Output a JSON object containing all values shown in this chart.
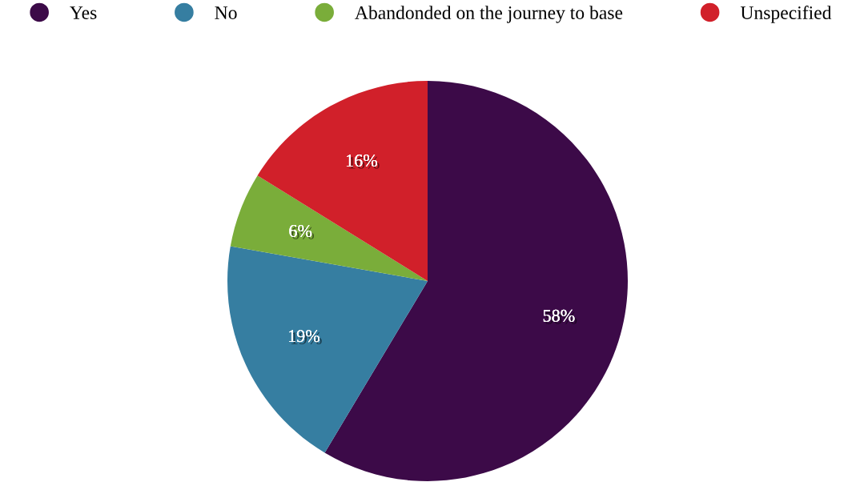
{
  "chart_data": {
    "type": "pie",
    "categories": [
      "Yes",
      "No",
      "Abandonded on the journey to base",
      "Unspecified"
    ],
    "values": [
      58,
      19,
      6,
      16
    ],
    "colors": [
      "#3c0a48",
      "#367ea1",
      "#7aad3a",
      "#d1202a"
    ],
    "value_labels": [
      "58%",
      "19%",
      "6%",
      "16%"
    ],
    "legend": "top"
  }
}
